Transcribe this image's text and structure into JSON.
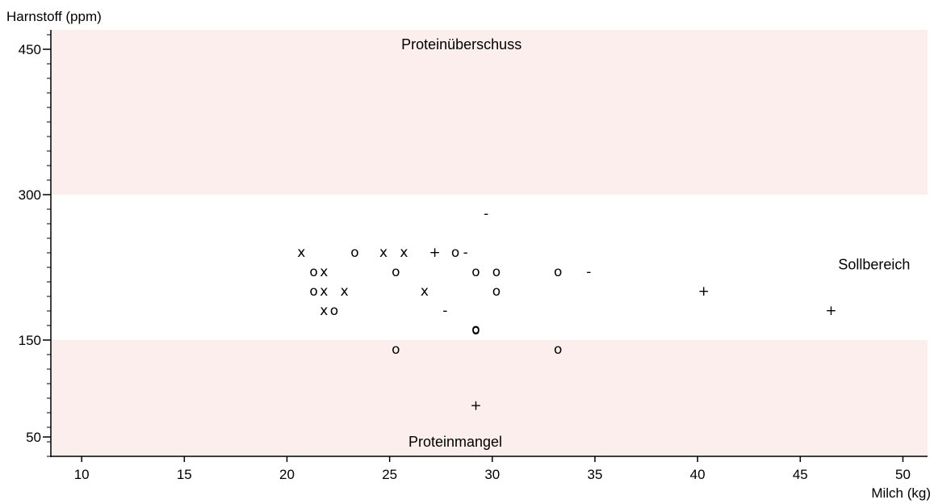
{
  "chart_data": {
    "type": "scatter",
    "xlabel": "Milch (kg)",
    "ylabel": "Harnstoff (ppm)",
    "xlim": [
      8.5,
      51.2
    ],
    "ylim": [
      30,
      470
    ],
    "x_ticks": [
      10,
      15,
      20,
      25,
      30,
      35,
      40,
      45,
      50
    ],
    "y_ticks": [
      50,
      150,
      300,
      450
    ],
    "y_minor_step": 15,
    "bands": [
      {
        "name": "Proteinüberschuss",
        "from": 300,
        "to": 470,
        "color": "#fbeeec",
        "label_x": 28.5,
        "label_y": 455
      },
      {
        "name": "Sollbereich",
        "from": 150,
        "to": 300,
        "color": "#ffffff",
        "label_x": 48.6,
        "label_y": 228
      },
      {
        "name": "Proteinmangel",
        "from": 30,
        "to": 150,
        "color": "#fbeeec",
        "label_x": 28.2,
        "label_y": 45
      }
    ],
    "points": [
      {
        "x": 20.7,
        "y": 240,
        "m": "x"
      },
      {
        "x": 21.3,
        "y": 220,
        "m": "o"
      },
      {
        "x": 21.8,
        "y": 220,
        "m": "x"
      },
      {
        "x": 21.3,
        "y": 200,
        "m": "o"
      },
      {
        "x": 21.8,
        "y": 200,
        "m": "x"
      },
      {
        "x": 22.8,
        "y": 200,
        "m": "x"
      },
      {
        "x": 21.8,
        "y": 180,
        "m": "x"
      },
      {
        "x": 22.3,
        "y": 180,
        "m": "o"
      },
      {
        "x": 23.3,
        "y": 240,
        "m": "o"
      },
      {
        "x": 24.7,
        "y": 240,
        "m": "x"
      },
      {
        "x": 25.7,
        "y": 240,
        "m": "x"
      },
      {
        "x": 25.3,
        "y": 220,
        "m": "o"
      },
      {
        "x": 26.7,
        "y": 200,
        "m": "x"
      },
      {
        "x": 27.2,
        "y": 240,
        "m": "+"
      },
      {
        "x": 28.2,
        "y": 240,
        "m": "o"
      },
      {
        "x": 28.7,
        "y": 240,
        "m": "-"
      },
      {
        "x": 29.7,
        "y": 280,
        "m": "-"
      },
      {
        "x": 29.2,
        "y": 220,
        "m": "o"
      },
      {
        "x": 30.2,
        "y": 220,
        "m": "o"
      },
      {
        "x": 30.2,
        "y": 200,
        "m": "o"
      },
      {
        "x": 27.7,
        "y": 180,
        "m": "-"
      },
      {
        "x": 29.2,
        "y": 160,
        "m": "o"
      },
      {
        "x": 29.2,
        "y": 161,
        "m": "o"
      },
      {
        "x": 25.3,
        "y": 140,
        "m": "o"
      },
      {
        "x": 29.2,
        "y": 82,
        "m": "+"
      },
      {
        "x": 33.2,
        "y": 220,
        "m": "o"
      },
      {
        "x": 34.7,
        "y": 220,
        "m": "-"
      },
      {
        "x": 33.2,
        "y": 140,
        "m": "o"
      },
      {
        "x": 40.3,
        "y": 200,
        "m": "+"
      },
      {
        "x": 46.5,
        "y": 180,
        "m": "+"
      }
    ],
    "colors": {
      "band": "#fbeeec",
      "axis": "#000000"
    }
  }
}
